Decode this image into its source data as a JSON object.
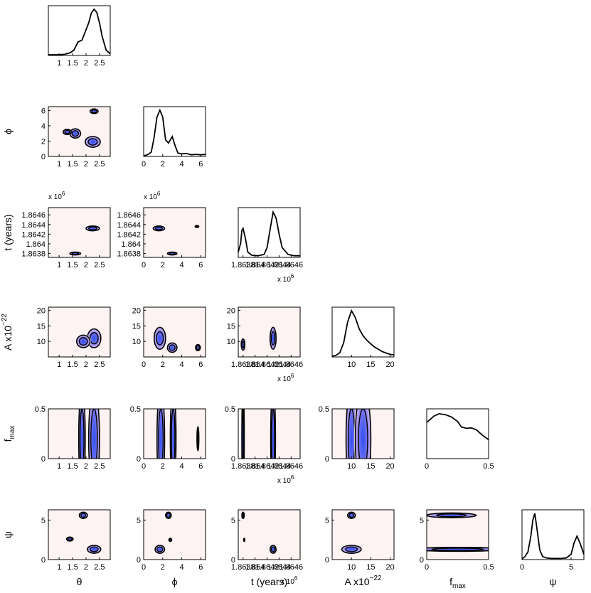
{
  "chart_data": {
    "type": "corner",
    "parameters": [
      {
        "key": "theta",
        "label": "θ",
        "ticks": [
          1,
          1.5,
          2,
          2.5
        ],
        "tick_labels": [
          "1",
          "1.5",
          "2",
          "2.5"
        ],
        "range": [
          0.6,
          2.9
        ],
        "scale_label": ""
      },
      {
        "key": "phi",
        "label": "ϕ",
        "ticks": [
          0,
          2,
          4,
          6
        ],
        "tick_labels": [
          "0",
          "2",
          "4",
          "6"
        ],
        "range": [
          0,
          6.5
        ],
        "scale_label": ""
      },
      {
        "key": "t",
        "label": "t (years)",
        "ticks": [
          1.8638,
          1.864,
          1.8642,
          1.8644,
          1.8646
        ],
        "tick_labels": [
          "1.8638",
          "1.864",
          "1.8642",
          "1.8644",
          "1.8646"
        ],
        "range": [
          1.86372,
          1.86475
        ],
        "scale_label": "x 10",
        "scale_exp": "6"
      },
      {
        "key": "A",
        "label": "A x10",
        "label_exp": "−22",
        "ticks": [
          10,
          15,
          20
        ],
        "tick_labels": [
          "10",
          "15",
          "20"
        ],
        "range": [
          5,
          21
        ],
        "scale_label": ""
      },
      {
        "key": "fmax",
        "label": "f",
        "label_sub": "max",
        "ticks": [
          0,
          0.5
        ],
        "tick_labels": [
          "0",
          "0.5"
        ],
        "range": [
          0,
          0.5
        ],
        "scale_label": ""
      },
      {
        "key": "psi",
        "label": "ψ",
        "ticks": [
          0,
          5
        ],
        "tick_labels": [
          "0",
          "5"
        ],
        "range": [
          0,
          6.3
        ],
        "scale_label": ""
      }
    ],
    "y_axis_ticks": {
      "phi": [
        "0",
        "2",
        "4",
        "6"
      ],
      "t": [
        "1.8638",
        "1.864",
        "1.8642",
        "1.8644",
        "1.8646"
      ],
      "A": [
        "10",
        "15",
        "20"
      ],
      "fmax": [
        "0",
        "0.5"
      ],
      "psi": [
        "0",
        "5"
      ]
    },
    "marginals": {
      "theta": {
        "x": [
          0.6,
          0.9,
          1.2,
          1.4,
          1.55,
          1.7,
          1.85,
          2.0,
          2.1,
          2.2,
          2.3,
          2.4,
          2.5,
          2.6,
          2.75,
          2.9
        ],
        "y": [
          0,
          0,
          0.01,
          0.04,
          0.1,
          0.28,
          0.32,
          0.55,
          0.7,
          0.92,
          1.0,
          0.93,
          0.7,
          0.4,
          0.1,
          0.02
        ]
      },
      "phi": {
        "x": [
          0,
          0.4,
          0.8,
          1.1,
          1.4,
          1.7,
          2.0,
          2.3,
          2.6,
          3.0,
          3.3,
          3.6,
          4.0,
          4.5,
          5.0,
          5.5,
          6.0,
          6.5
        ],
        "y": [
          0,
          0.02,
          0.08,
          0.4,
          0.85,
          1.0,
          0.85,
          0.35,
          0.28,
          0.42,
          0.22,
          0.06,
          0.04,
          0.05,
          0.02,
          0.03,
          0.02,
          0.03
        ]
      },
      "t": {
        "x": [
          1.86372,
          1.86376,
          1.86378,
          1.8638,
          1.86384,
          1.86388,
          1.86395,
          1.86405,
          1.86415,
          1.8642,
          1.86425,
          1.8643,
          1.86435,
          1.8644,
          1.86445,
          1.86455,
          1.86465,
          1.86475
        ],
        "y": [
          0.1,
          0.3,
          0.58,
          0.62,
          0.4,
          0.1,
          0.03,
          0.02,
          0.05,
          0.2,
          0.6,
          0.98,
          0.85,
          0.5,
          0.2,
          0.05,
          0.02,
          0.02
        ]
      },
      "A": {
        "x": [
          5,
          6,
          7,
          8,
          9,
          10,
          11,
          12,
          13,
          14,
          15,
          16,
          17,
          18,
          19,
          20,
          21
        ],
        "y": [
          0,
          0.02,
          0.08,
          0.3,
          0.75,
          1.0,
          0.85,
          0.6,
          0.45,
          0.35,
          0.27,
          0.2,
          0.15,
          0.1,
          0.07,
          0.04,
          0.03
        ]
      },
      "fmax": {
        "x": [
          0,
          0.03,
          0.06,
          0.1,
          0.15,
          0.2,
          0.25,
          0.28,
          0.32,
          0.36,
          0.4,
          0.45,
          0.5
        ],
        "y": [
          0.78,
          0.85,
          0.92,
          0.97,
          0.95,
          0.9,
          0.8,
          0.68,
          0.65,
          0.66,
          0.62,
          0.5,
          0.4
        ]
      },
      "psi": {
        "x": [
          0,
          0.3,
          0.6,
          0.9,
          1.1,
          1.3,
          1.5,
          1.8,
          2.1,
          2.5,
          3.0,
          3.5,
          4.0,
          4.5,
          5.0,
          5.3,
          5.6,
          5.9,
          6.3
        ],
        "y": [
          0,
          0.05,
          0.15,
          0.5,
          0.85,
          1.0,
          0.7,
          0.2,
          0.05,
          0.02,
          0.01,
          0.01,
          0.01,
          0.02,
          0.1,
          0.35,
          0.5,
          0.35,
          0.1
        ]
      }
    },
    "joint_modes": [
      {
        "row": "phi",
        "col": "theta",
        "modes": [
          [
            2.25,
            1.9,
            0.28,
            0.7
          ],
          [
            1.6,
            3.0,
            0.2,
            0.6
          ],
          [
            2.3,
            5.9,
            0.15,
            0.3
          ],
          [
            1.3,
            3.2,
            0.15,
            0.35
          ]
        ]
      },
      {
        "row": "t",
        "col": "theta",
        "modes": [
          [
            2.25,
            1.86432,
            0.25,
            5e-05
          ],
          [
            1.6,
            1.8638,
            0.2,
            3e-05
          ]
        ]
      },
      {
        "row": "t",
        "col": "phi",
        "modes": [
          [
            1.6,
            1.86432,
            0.6,
            5e-05
          ],
          [
            3.0,
            1.8638,
            0.5,
            3e-05
          ],
          [
            5.6,
            1.86436,
            0.2,
            2e-05
          ]
        ]
      },
      {
        "row": "A",
        "col": "theta",
        "modes": [
          [
            2.3,
            11,
            0.25,
            3.0
          ],
          [
            1.9,
            10,
            0.25,
            2.0
          ]
        ]
      },
      {
        "row": "A",
        "col": "phi",
        "modes": [
          [
            1.7,
            11,
            0.6,
            3.5
          ],
          [
            3.0,
            8,
            0.5,
            1.5
          ],
          [
            5.7,
            8,
            0.25,
            1.0
          ]
        ]
      },
      {
        "row": "A",
        "col": "t",
        "modes": [
          [
            1.8643,
            11,
            5e-05,
            3.5
          ],
          [
            1.8638,
            9,
            3e-05,
            1.8
          ]
        ]
      },
      {
        "row": "fmax",
        "col": "theta",
        "modes": [
          [
            2.3,
            0.2,
            0.2,
            0.5
          ],
          [
            1.85,
            0.2,
            0.12,
            0.5
          ]
        ]
      },
      {
        "row": "fmax",
        "col": "phi",
        "modes": [
          [
            1.8,
            0.2,
            0.4,
            0.5
          ],
          [
            3.1,
            0.2,
            0.3,
            0.5
          ],
          [
            5.7,
            0.2,
            0.1,
            0.12
          ]
        ]
      },
      {
        "row": "fmax",
        "col": "t",
        "modes": [
          [
            1.8643,
            0.2,
            4e-05,
            0.5
          ],
          [
            1.8638,
            0.2,
            2e-05,
            0.5
          ]
        ]
      },
      {
        "row": "fmax",
        "col": "A",
        "modes": [
          [
            10,
            0.2,
            1.4,
            0.5
          ],
          [
            13,
            0.2,
            2.0,
            0.5
          ]
        ]
      },
      {
        "row": "psi",
        "col": "theta",
        "modes": [
          [
            2.3,
            1.3,
            0.25,
            0.5
          ],
          [
            1.9,
            5.6,
            0.15,
            0.4
          ],
          [
            1.4,
            2.6,
            0.12,
            0.25
          ]
        ]
      },
      {
        "row": "psi",
        "col": "phi",
        "modes": [
          [
            1.7,
            1.3,
            0.5,
            0.5
          ],
          [
            2.6,
            5.6,
            0.3,
            0.4
          ],
          [
            2.8,
            2.5,
            0.15,
            0.2
          ]
        ]
      },
      {
        "row": "psi",
        "col": "t",
        "modes": [
          [
            1.8643,
            1.3,
            5e-05,
            0.5
          ],
          [
            1.8638,
            5.6,
            2e-05,
            0.4
          ],
          [
            1.86382,
            2.5,
            1e-05,
            0.2
          ]
        ]
      },
      {
        "row": "psi",
        "col": "A",
        "modes": [
          [
            10,
            1.3,
            2.5,
            0.5
          ],
          [
            10,
            5.6,
            1.0,
            0.4
          ]
        ]
      },
      {
        "row": "psi",
        "col": "fmax",
        "modes": [
          [
            0.25,
            1.3,
            0.35,
            0.25
          ],
          [
            0.2,
            5.6,
            0.2,
            0.3
          ]
        ]
      }
    ],
    "colors": {
      "density_low": "#fdf3f2",
      "density_mid": "#b9a6ef",
      "density_high": "#2f4ff0",
      "line": "#000000"
    }
  }
}
